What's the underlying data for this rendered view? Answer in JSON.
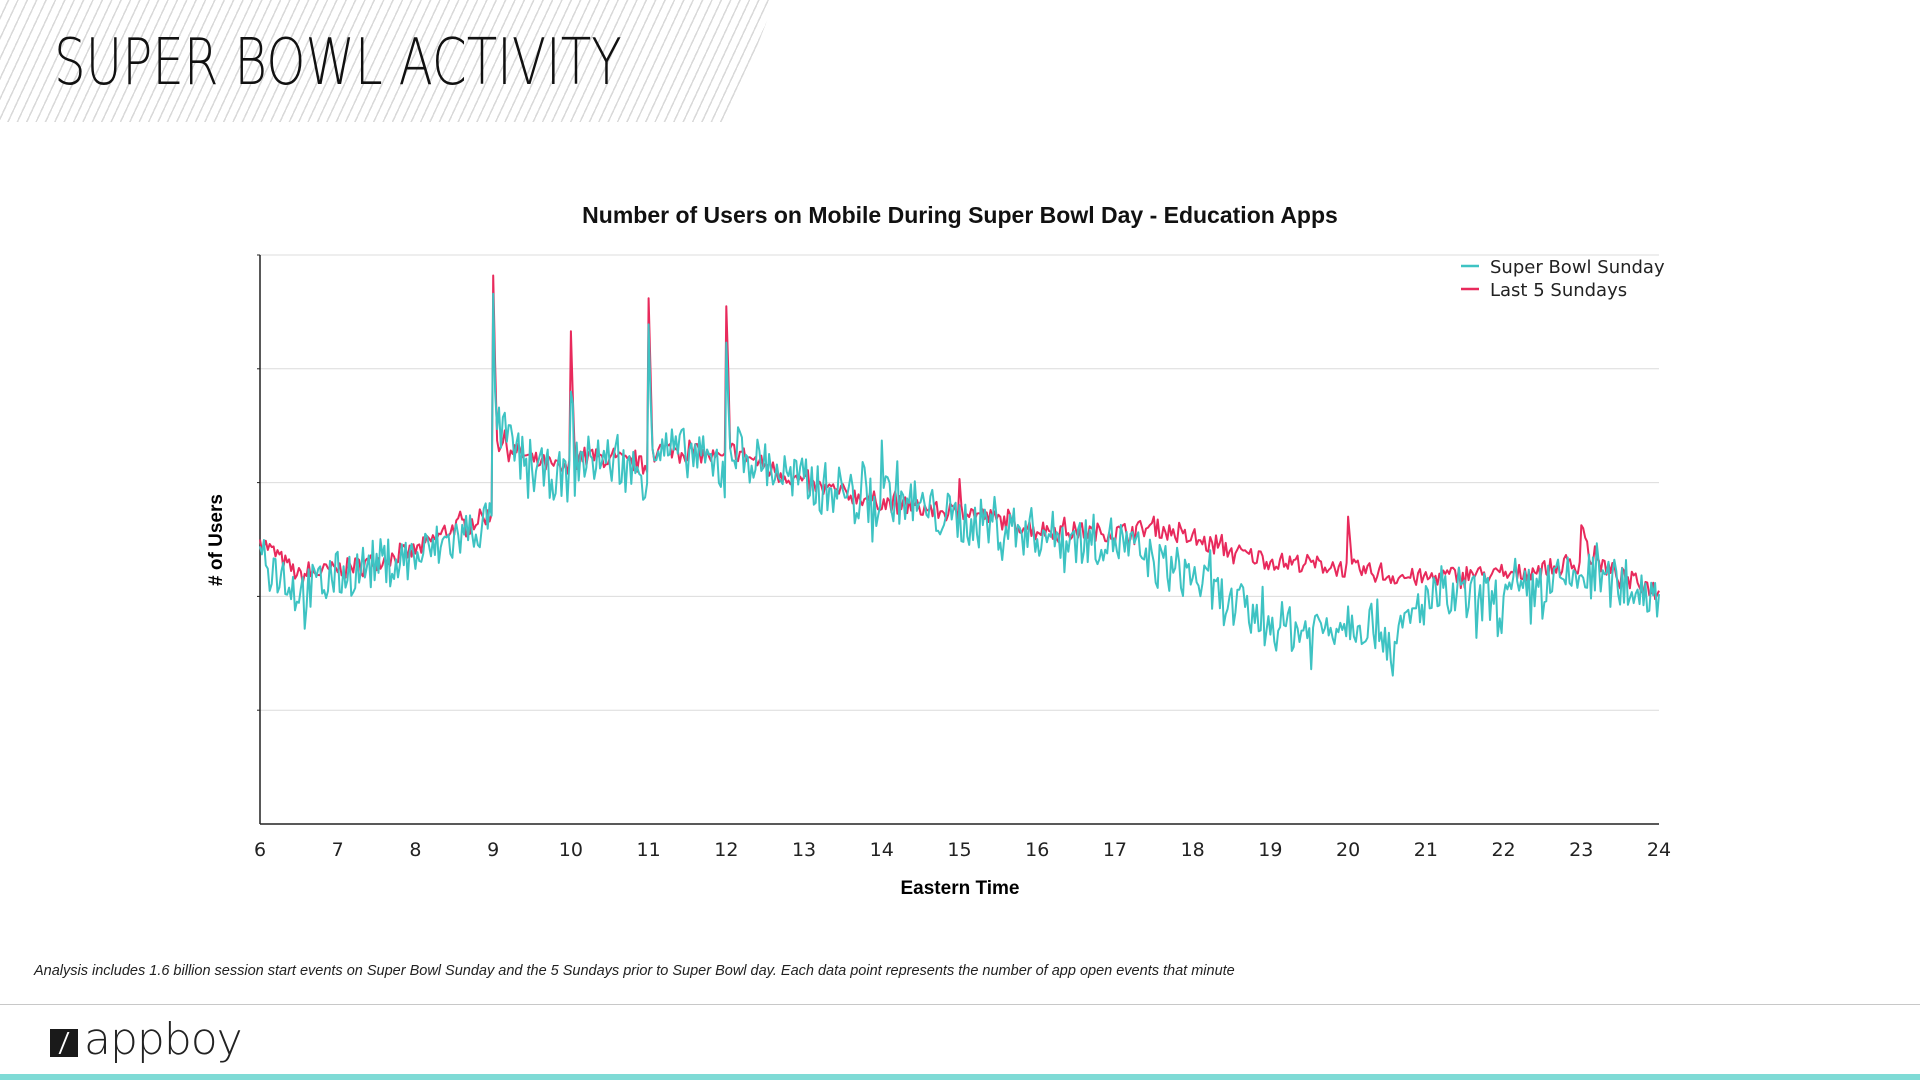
{
  "header": {
    "title": "SUPER BOWL ACTIVITY"
  },
  "footnote": "Analysis includes 1.6 billion session start events on Super Bowl Sunday and the 5 Sundays prior to Super Bowl day.  Each data point represents the number of app open events that minute",
  "brand": {
    "logo_text": "appboy"
  },
  "colors": {
    "super_bowl": "#3ec3c3",
    "last5": "#e82a5c",
    "accent_bar": "#7fdbd6"
  },
  "chart_data": {
    "type": "line",
    "title": "Number of Users on Mobile During Super Bowl Day - Education Apps",
    "xlabel": "Eastern Time",
    "ylabel": "# of Users",
    "xlim": [
      6,
      24
    ],
    "ylim": [
      0,
      5
    ],
    "y_gridlines": [
      1,
      2,
      3,
      4,
      5
    ],
    "y_units": "relative (no tick labels shown)",
    "xticks": [
      "6",
      "7",
      "8",
      "9",
      "10",
      "11",
      "12",
      "13",
      "14",
      "15",
      "16",
      "17",
      "18",
      "19",
      "20",
      "21",
      "22",
      "23",
      "24"
    ],
    "grid": true,
    "legend_position": "top-right",
    "series": [
      {
        "name": "Super Bowl Sunday",
        "color": "#3ec3c3",
        "noise": 0.22,
        "points": [
          [
            6,
            2.44
          ],
          [
            6.5,
            2.02
          ],
          [
            7,
            2.18
          ],
          [
            7.5,
            2.29
          ],
          [
            8,
            2.34
          ],
          [
            8.5,
            2.5
          ],
          [
            8.98,
            2.67
          ],
          [
            9,
            4.66
          ],
          [
            9.05,
            3.47
          ],
          [
            9.5,
            3.1
          ],
          [
            9.98,
            3.04
          ],
          [
            10,
            3.8
          ],
          [
            10.05,
            3.2
          ],
          [
            10.5,
            3.2
          ],
          [
            10.98,
            3.05
          ],
          [
            11,
            4.39
          ],
          [
            11.05,
            3.3
          ],
          [
            11.5,
            3.26
          ],
          [
            11.98,
            3.1
          ],
          [
            12,
            4.23
          ],
          [
            12.05,
            3.3
          ],
          [
            12.5,
            3.15
          ],
          [
            13,
            2.99
          ],
          [
            13.5,
            2.94
          ],
          [
            13.98,
            2.77
          ],
          [
            14,
            3.37
          ],
          [
            14.05,
            2.9
          ],
          [
            14.5,
            2.77
          ],
          [
            15,
            2.67
          ],
          [
            15.5,
            2.61
          ],
          [
            16,
            2.56
          ],
          [
            16.5,
            2.5
          ],
          [
            17,
            2.5
          ],
          [
            17.5,
            2.29
          ],
          [
            18,
            2.18
          ],
          [
            18.5,
            1.91
          ],
          [
            19,
            1.75
          ],
          [
            19.5,
            1.7
          ],
          [
            20,
            1.81
          ],
          [
            20.4,
            1.75
          ],
          [
            20.6,
            1.54
          ],
          [
            20.8,
            1.8
          ],
          [
            21,
            1.97
          ],
          [
            21.5,
            1.97
          ],
          [
            22,
            1.97
          ],
          [
            22.5,
            2.08
          ],
          [
            23,
            2.18
          ],
          [
            23.5,
            2.1
          ],
          [
            24,
            2.02
          ]
        ]
      },
      {
        "name": "Last 5 Sundays",
        "color": "#e82a5c",
        "noise": 0.08,
        "points": [
          [
            6,
            2.5
          ],
          [
            6.5,
            2.18
          ],
          [
            7,
            2.24
          ],
          [
            7.5,
            2.31
          ],
          [
            8,
            2.4
          ],
          [
            8.5,
            2.61
          ],
          [
            8.98,
            2.72
          ],
          [
            9,
            4.82
          ],
          [
            9.05,
            3.37
          ],
          [
            9.5,
            3.2
          ],
          [
            9.98,
            3.1
          ],
          [
            10,
            4.33
          ],
          [
            10.05,
            3.25
          ],
          [
            10.5,
            3.2
          ],
          [
            10.98,
            3.15
          ],
          [
            11,
            4.62
          ],
          [
            11.05,
            3.3
          ],
          [
            11.5,
            3.28
          ],
          [
            11.98,
            3.2
          ],
          [
            12,
            4.55
          ],
          [
            12.05,
            3.3
          ],
          [
            12.5,
            3.15
          ],
          [
            13,
            2.99
          ],
          [
            14,
            2.83
          ],
          [
            14.98,
            2.72
          ],
          [
            15,
            3.04
          ],
          [
            15.05,
            2.75
          ],
          [
            16,
            2.59
          ],
          [
            17,
            2.56
          ],
          [
            17.5,
            2.61
          ],
          [
            18,
            2.5
          ],
          [
            18.5,
            2.4
          ],
          [
            19,
            2.31
          ],
          [
            19.5,
            2.29
          ],
          [
            19.98,
            2.24
          ],
          [
            20,
            2.63
          ],
          [
            20.05,
            2.25
          ],
          [
            20.5,
            2.18
          ],
          [
            21,
            2.16
          ],
          [
            21.5,
            2.2
          ],
          [
            22,
            2.18
          ],
          [
            22.5,
            2.24
          ],
          [
            22.98,
            2.28
          ],
          [
            23,
            2.69
          ],
          [
            23.1,
            2.35
          ],
          [
            23.5,
            2.18
          ],
          [
            24,
            2.05
          ]
        ]
      }
    ]
  }
}
